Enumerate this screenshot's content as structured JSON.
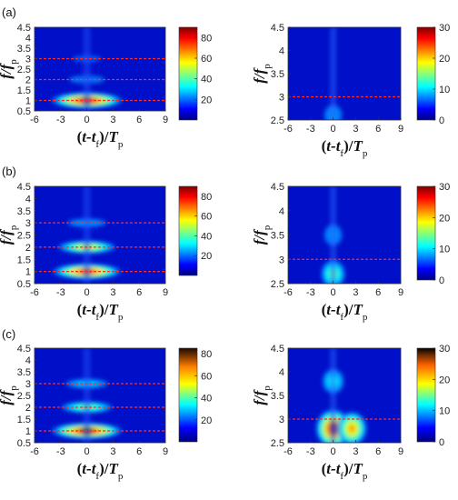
{
  "chart_data": [
    {
      "type": "heatmap",
      "panel": "(a)",
      "x": [
        -6,
        9
      ],
      "xticks": [
        -6,
        -3,
        0,
        3,
        6,
        9
      ],
      "ylim": [
        0.5,
        4.5
      ],
      "yticks": [
        0.5,
        1,
        1.5,
        2,
        2.5,
        3,
        3.5,
        4,
        4.5
      ],
      "clim": [
        0,
        90
      ],
      "cbticks": [
        20,
        40,
        60,
        80
      ],
      "dashed_lines_y": [
        1,
        2,
        3
      ],
      "peaks": [
        {
          "x": 0,
          "y": 1,
          "value": 85
        },
        {
          "x": 0,
          "y": 2,
          "value": 20
        },
        {
          "x": 0,
          "y": 3,
          "value": 5
        }
      ]
    },
    {
      "type": "heatmap",
      "ylim": [
        2.5,
        4.5
      ],
      "x": [
        -6,
        9
      ],
      "xticks": [
        -6,
        -3,
        0,
        3,
        6,
        9
      ],
      "yticks": [
        2.5,
        3,
        3.5,
        4,
        4.5
      ],
      "clim": [
        0,
        30
      ],
      "cbticks": [
        0,
        10,
        20,
        30
      ],
      "dashed_lines_y": [
        3
      ],
      "peaks": [
        {
          "x": 0,
          "y": 2.6,
          "value": 8
        }
      ]
    },
    {
      "type": "heatmap",
      "panel": "(b)",
      "x": [
        -6,
        9
      ],
      "xticks": [
        -6,
        -3,
        0,
        3,
        6,
        9
      ],
      "ylim": [
        0.5,
        4.5
      ],
      "yticks": [
        0.5,
        1,
        1.5,
        2,
        2.5,
        3,
        3.5,
        4,
        4.5
      ],
      "clim": [
        0,
        90
      ],
      "cbticks": [
        20,
        40,
        60,
        80
      ],
      "dashed_lines_y": [
        1,
        2,
        3
      ],
      "peaks": [
        {
          "x": 0,
          "y": 1,
          "value": 80
        },
        {
          "x": 0,
          "y": 2,
          "value": 60
        },
        {
          "x": 0,
          "y": 3,
          "value": 25
        }
      ]
    },
    {
      "type": "heatmap",
      "ylim": [
        2.5,
        4.5
      ],
      "x": [
        -6,
        9
      ],
      "xticks": [
        -6,
        -3,
        0,
        3,
        6,
        9
      ],
      "yticks": [
        2.5,
        3,
        3.5,
        4,
        4.5
      ],
      "clim": [
        0,
        30
      ],
      "cbticks": [
        0,
        10,
        20,
        30
      ],
      "dashed_lines_y": [
        3
      ],
      "peaks": [
        {
          "x": 0,
          "y": 2.7,
          "value": 15
        },
        {
          "x": 0,
          "y": 3.5,
          "value": 8
        }
      ]
    },
    {
      "type": "heatmap",
      "panel": "(c)",
      "x": [
        -6,
        9
      ],
      "xticks": [
        -6,
        -3,
        0,
        3,
        6,
        9
      ],
      "ylim": [
        0.5,
        4.5
      ],
      "yticks": [
        0.5,
        1,
        1.5,
        2,
        2.5,
        3,
        3.5,
        4,
        4.5
      ],
      "clim": [
        0,
        85
      ],
      "cbticks": [
        20,
        40,
        60,
        80
      ],
      "dashed_lines_y": [
        1,
        2,
        3
      ],
      "peaks": [
        {
          "x": 0,
          "y": 1,
          "value": 80
        },
        {
          "x": 0,
          "y": 2,
          "value": 45
        },
        {
          "x": 0,
          "y": 3,
          "value": 30
        }
      ]
    },
    {
      "type": "heatmap",
      "ylim": [
        2.5,
        4.5
      ],
      "x": [
        -6,
        9
      ],
      "xticks": [
        -6,
        -3,
        0,
        3,
        6,
        9
      ],
      "yticks": [
        2.5,
        3,
        3.5,
        4,
        4.5
      ],
      "clim": [
        0,
        30
      ],
      "cbticks": [
        0,
        10,
        20,
        30
      ],
      "dashed_lines_y": [
        3
      ],
      "peaks": [
        {
          "x": 0,
          "y": 2.8,
          "value": 28
        },
        {
          "x": 2.5,
          "y": 2.8,
          "value": 22
        },
        {
          "x": 0,
          "y": 3.8,
          "value": 12
        }
      ]
    }
  ],
  "axis_text": {
    "ylabel_main": "f/f",
    "ylabel_sub": "p",
    "xlabel_open": "(",
    "xlabel_t": "t",
    "xlabel_dash": "-",
    "xlabel_tf": "t",
    "xlabel_f": "f",
    "xlabel_close": ")/",
    "xlabel_T": "T",
    "xlabel_p": "p"
  }
}
